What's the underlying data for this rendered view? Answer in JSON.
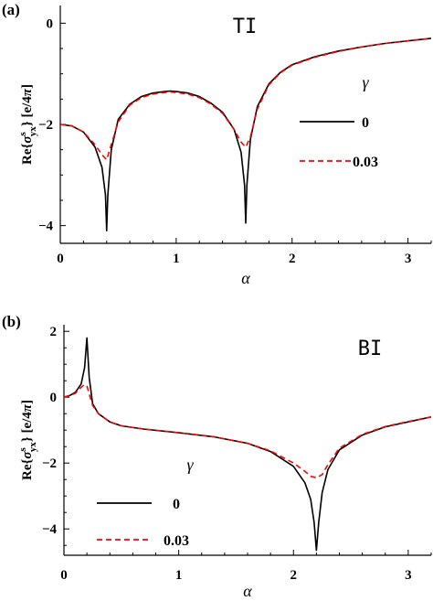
{
  "chart_data": [
    {
      "type": "line",
      "panel_label": "(a)",
      "title": "TI",
      "xlabel": "α",
      "ylabel": "Re{σ^s_yx} [e/4π]",
      "xlim": [
        0,
        3.2
      ],
      "ylim": [
        -4.35,
        0.35
      ],
      "xticks": [
        0,
        1,
        2,
        3
      ],
      "yticks": [
        0,
        -2,
        -4
      ],
      "legend": {
        "title": "γ",
        "placement": "right"
      },
      "series": [
        {
          "name": "0",
          "style": "solid",
          "color": "#000000",
          "x": [
            0,
            0.1,
            0.2,
            0.3,
            0.36,
            0.39,
            0.4,
            0.41,
            0.44,
            0.5,
            0.6,
            0.7,
            0.8,
            0.9,
            0.95,
            1.0,
            1.1,
            1.2,
            1.3,
            1.4,
            1.5,
            1.56,
            1.59,
            1.6,
            1.61,
            1.64,
            1.7,
            1.8,
            1.9,
            2.0,
            2.2,
            2.4,
            2.6,
            2.8,
            3.0,
            3.2
          ],
          "y": [
            -2.0,
            -2.03,
            -2.15,
            -2.45,
            -2.85,
            -3.4,
            -4.1,
            -3.4,
            -2.5,
            -1.9,
            -1.6,
            -1.45,
            -1.38,
            -1.35,
            -1.34,
            -1.35,
            -1.38,
            -1.45,
            -1.58,
            -1.76,
            -2.1,
            -2.55,
            -3.2,
            -3.95,
            -3.2,
            -2.3,
            -1.65,
            -1.2,
            -0.97,
            -0.82,
            -0.66,
            -0.55,
            -0.47,
            -0.4,
            -0.35,
            -0.3
          ]
        },
        {
          "name": "0.03",
          "style": "dashed",
          "color": "#ff0000",
          "x": [
            0,
            0.1,
            0.2,
            0.3,
            0.36,
            0.4,
            0.44,
            0.5,
            0.6,
            0.7,
            0.8,
            0.9,
            0.95,
            1.0,
            1.1,
            1.2,
            1.3,
            1.4,
            1.5,
            1.56,
            1.6,
            1.64,
            1.7,
            1.8,
            1.9,
            2.0,
            2.2,
            2.4,
            2.6,
            2.8,
            3.0,
            3.2
          ],
          "y": [
            -2.0,
            -2.03,
            -2.15,
            -2.4,
            -2.6,
            -2.7,
            -2.4,
            -1.95,
            -1.62,
            -1.47,
            -1.4,
            -1.37,
            -1.36,
            -1.37,
            -1.4,
            -1.47,
            -1.6,
            -1.78,
            -2.1,
            -2.35,
            -2.45,
            -2.25,
            -1.7,
            -1.22,
            -0.98,
            -0.83,
            -0.67,
            -0.56,
            -0.47,
            -0.4,
            -0.35,
            -0.3
          ]
        }
      ]
    },
    {
      "type": "line",
      "panel_label": "(b)",
      "title": "BI",
      "xlabel": "α",
      "ylabel": "Re{σ^s_yx} [e/4π]",
      "xlim": [
        0,
        3.2
      ],
      "ylim": [
        -4.8,
        2.2
      ],
      "xticks": [
        0,
        1,
        2,
        3
      ],
      "yticks": [
        2,
        0,
        -2,
        -4
      ],
      "legend": {
        "title": "γ",
        "placement": "bottom-left"
      },
      "series": [
        {
          "name": "0",
          "style": "solid",
          "color": "#000000",
          "x": [
            0,
            0.05,
            0.1,
            0.15,
            0.18,
            0.2,
            0.22,
            0.25,
            0.3,
            0.4,
            0.5,
            0.7,
            1.0,
            1.3,
            1.6,
            1.8,
            2.0,
            2.1,
            2.15,
            2.18,
            2.2,
            2.22,
            2.25,
            2.3,
            2.4,
            2.6,
            2.8,
            3.0,
            3.2
          ],
          "y": [
            0.0,
            0.05,
            0.15,
            0.4,
            0.9,
            1.8,
            0.6,
            -0.2,
            -0.5,
            -0.75,
            -0.87,
            -0.97,
            -1.08,
            -1.2,
            -1.4,
            -1.65,
            -2.1,
            -2.6,
            -3.1,
            -3.8,
            -4.65,
            -3.8,
            -2.9,
            -2.2,
            -1.6,
            -1.15,
            -0.9,
            -0.75,
            -0.6
          ]
        },
        {
          "name": "0.03",
          "style": "dashed",
          "color": "#ff0000",
          "x": [
            0,
            0.05,
            0.1,
            0.15,
            0.18,
            0.2,
            0.22,
            0.25,
            0.3,
            0.4,
            0.5,
            0.7,
            1.0,
            1.3,
            1.6,
            1.8,
            2.0,
            2.1,
            2.15,
            2.2,
            2.25,
            2.3,
            2.4,
            2.6,
            2.8,
            3.0,
            3.2
          ],
          "y": [
            0.0,
            0.05,
            0.12,
            0.3,
            0.38,
            0.35,
            0.1,
            -0.25,
            -0.5,
            -0.75,
            -0.87,
            -0.97,
            -1.08,
            -1.2,
            -1.4,
            -1.63,
            -2.0,
            -2.25,
            -2.4,
            -2.45,
            -2.35,
            -2.05,
            -1.55,
            -1.13,
            -0.89,
            -0.74,
            -0.6
          ]
        }
      ]
    }
  ],
  "colors": {
    "axis": "#000000",
    "series_solid": "#000000",
    "series_dashed": "#ff0000"
  }
}
